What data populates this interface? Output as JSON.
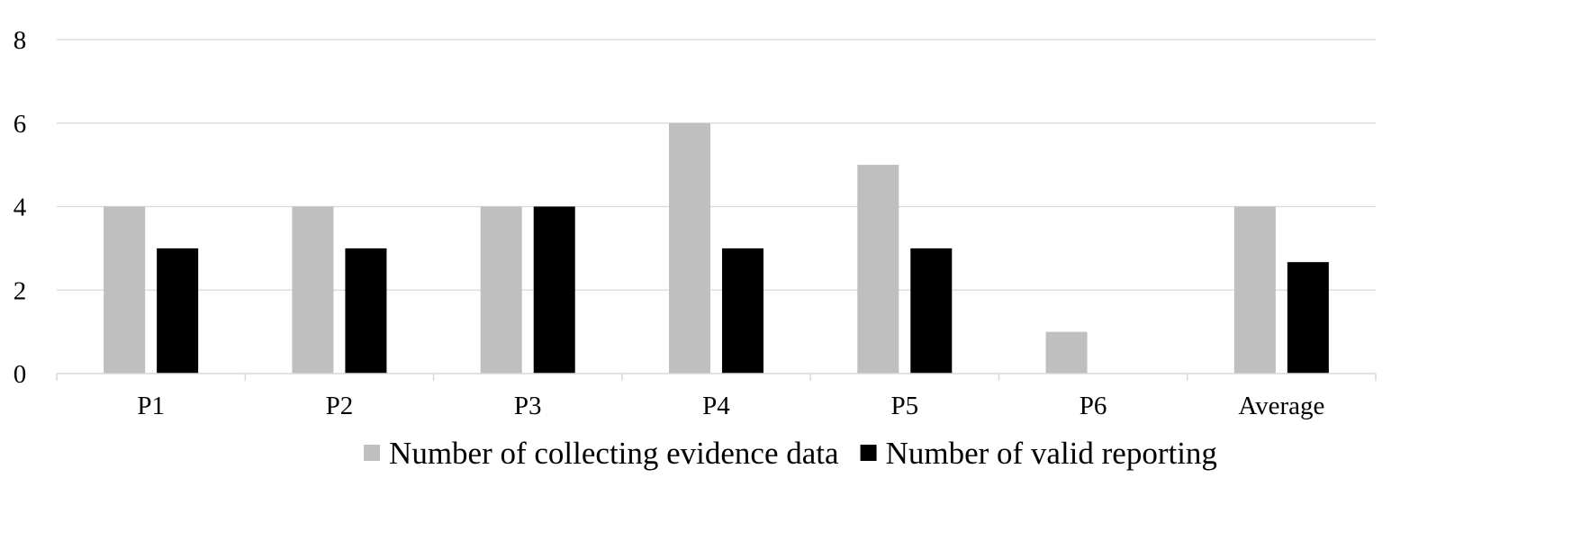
{
  "chart_data": {
    "type": "bar",
    "categories": [
      "P1",
      "P2",
      "P3",
      "P4",
      "P5",
      "P6",
      "Average"
    ],
    "series": [
      {
        "name": "Number of collecting evidence data",
        "color": "#bfbfbf",
        "values": [
          4,
          4,
          4,
          6,
          5,
          1,
          4
        ]
      },
      {
        "name": "Number of valid reporting",
        "color": "#000000",
        "values": [
          3,
          3,
          4,
          3,
          3,
          0,
          2.67
        ]
      }
    ],
    "yticks": [
      0,
      2,
      4,
      6,
      8
    ],
    "ylim": [
      0,
      8
    ],
    "grid": true,
    "gridColor": "#d9d9d9",
    "legend": "bottom"
  }
}
